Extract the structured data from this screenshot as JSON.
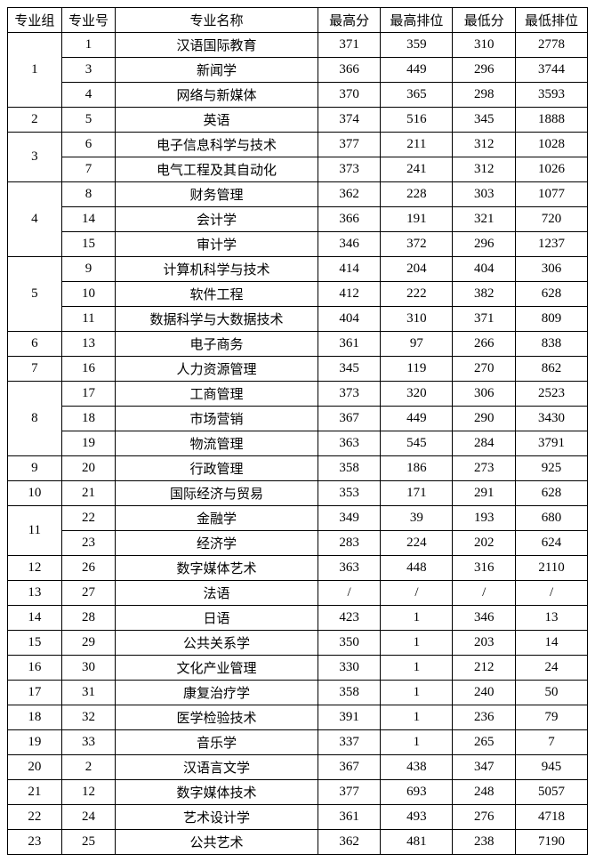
{
  "table": {
    "columns": [
      "专业组",
      "专业号",
      "专业名称",
      "最高分",
      "最高排位",
      "最低分",
      "最低排位"
    ],
    "groups": [
      {
        "group": "1",
        "rows": [
          {
            "num": "1",
            "name": "汉语国际教育",
            "maxScore": "371",
            "maxRank": "359",
            "minScore": "310",
            "minRank": "2778"
          },
          {
            "num": "3",
            "name": "新闻学",
            "maxScore": "366",
            "maxRank": "449",
            "minScore": "296",
            "minRank": "3744"
          },
          {
            "num": "4",
            "name": "网络与新媒体",
            "maxScore": "370",
            "maxRank": "365",
            "minScore": "298",
            "minRank": "3593"
          }
        ]
      },
      {
        "group": "2",
        "rows": [
          {
            "num": "5",
            "name": "英语",
            "maxScore": "374",
            "maxRank": "516",
            "minScore": "345",
            "minRank": "1888"
          }
        ]
      },
      {
        "group": "3",
        "rows": [
          {
            "num": "6",
            "name": "电子信息科学与技术",
            "maxScore": "377",
            "maxRank": "211",
            "minScore": "312",
            "minRank": "1028"
          },
          {
            "num": "7",
            "name": "电气工程及其自动化",
            "maxScore": "373",
            "maxRank": "241",
            "minScore": "312",
            "minRank": "1026"
          }
        ]
      },
      {
        "group": "4",
        "rows": [
          {
            "num": "8",
            "name": "财务管理",
            "maxScore": "362",
            "maxRank": "228",
            "minScore": "303",
            "minRank": "1077"
          },
          {
            "num": "14",
            "name": "会计学",
            "maxScore": "366",
            "maxRank": "191",
            "minScore": "321",
            "minRank": "720"
          },
          {
            "num": "15",
            "name": "审计学",
            "maxScore": "346",
            "maxRank": "372",
            "minScore": "296",
            "minRank": "1237"
          }
        ]
      },
      {
        "group": "5",
        "rows": [
          {
            "num": "9",
            "name": "计算机科学与技术",
            "maxScore": "414",
            "maxRank": "204",
            "minScore": "404",
            "minRank": "306"
          },
          {
            "num": "10",
            "name": "软件工程",
            "maxScore": "412",
            "maxRank": "222",
            "minScore": "382",
            "minRank": "628"
          },
          {
            "num": "11",
            "name": "数据科学与大数据技术",
            "maxScore": "404",
            "maxRank": "310",
            "minScore": "371",
            "minRank": "809"
          }
        ]
      },
      {
        "group": "6",
        "rows": [
          {
            "num": "13",
            "name": "电子商务",
            "maxScore": "361",
            "maxRank": "97",
            "minScore": "266",
            "minRank": "838"
          }
        ]
      },
      {
        "group": "7",
        "rows": [
          {
            "num": "16",
            "name": "人力资源管理",
            "maxScore": "345",
            "maxRank": "119",
            "minScore": "270",
            "minRank": "862"
          }
        ]
      },
      {
        "group": "8",
        "rows": [
          {
            "num": "17",
            "name": "工商管理",
            "maxScore": "373",
            "maxRank": "320",
            "minScore": "306",
            "minRank": "2523"
          },
          {
            "num": "18",
            "name": "市场营销",
            "maxScore": "367",
            "maxRank": "449",
            "minScore": "290",
            "minRank": "3430"
          },
          {
            "num": "19",
            "name": "物流管理",
            "maxScore": "363",
            "maxRank": "545",
            "minScore": "284",
            "minRank": "3791"
          }
        ]
      },
      {
        "group": "9",
        "rows": [
          {
            "num": "20",
            "name": "行政管理",
            "maxScore": "358",
            "maxRank": "186",
            "minScore": "273",
            "minRank": "925"
          }
        ]
      },
      {
        "group": "10",
        "rows": [
          {
            "num": "21",
            "name": "国际经济与贸易",
            "maxScore": "353",
            "maxRank": "171",
            "minScore": "291",
            "minRank": "628"
          }
        ]
      },
      {
        "group": "11",
        "rows": [
          {
            "num": "22",
            "name": "金融学",
            "maxScore": "349",
            "maxRank": "39",
            "minScore": "193",
            "minRank": "680"
          },
          {
            "num": "23",
            "name": "经济学",
            "maxScore": "283",
            "maxRank": "224",
            "minScore": "202",
            "minRank": "624"
          }
        ]
      },
      {
        "group": "12",
        "rows": [
          {
            "num": "26",
            "name": "数字媒体艺术",
            "maxScore": "363",
            "maxRank": "448",
            "minScore": "316",
            "minRank": "2110"
          }
        ]
      },
      {
        "group": "13",
        "rows": [
          {
            "num": "27",
            "name": "法语",
            "maxScore": "/",
            "maxRank": "/",
            "minScore": "/",
            "minRank": "/"
          }
        ]
      },
      {
        "group": "14",
        "rows": [
          {
            "num": "28",
            "name": "日语",
            "maxScore": "423",
            "maxRank": "1",
            "minScore": "346",
            "minRank": "13"
          }
        ]
      },
      {
        "group": "15",
        "rows": [
          {
            "num": "29",
            "name": "公共关系学",
            "maxScore": "350",
            "maxRank": "1",
            "minScore": "203",
            "minRank": "14"
          }
        ]
      },
      {
        "group": "16",
        "rows": [
          {
            "num": "30",
            "name": "文化产业管理",
            "maxScore": "330",
            "maxRank": "1",
            "minScore": "212",
            "minRank": "24"
          }
        ]
      },
      {
        "group": "17",
        "rows": [
          {
            "num": "31",
            "name": "康复治疗学",
            "maxScore": "358",
            "maxRank": "1",
            "minScore": "240",
            "minRank": "50"
          }
        ]
      },
      {
        "group": "18",
        "rows": [
          {
            "num": "32",
            "name": "医学检验技术",
            "maxScore": "391",
            "maxRank": "1",
            "minScore": "236",
            "minRank": "79"
          }
        ]
      },
      {
        "group": "19",
        "rows": [
          {
            "num": "33",
            "name": "音乐学",
            "maxScore": "337",
            "maxRank": "1",
            "minScore": "265",
            "minRank": "7"
          }
        ]
      },
      {
        "group": "20",
        "rows": [
          {
            "num": "2",
            "name": "汉语言文学",
            "maxScore": "367",
            "maxRank": "438",
            "minScore": "347",
            "minRank": "945"
          }
        ]
      },
      {
        "group": "21",
        "rows": [
          {
            "num": "12",
            "name": "数字媒体技术",
            "maxScore": "377",
            "maxRank": "693",
            "minScore": "248",
            "minRank": "5057"
          }
        ]
      },
      {
        "group": "22",
        "rows": [
          {
            "num": "24",
            "name": "艺术设计学",
            "maxScore": "361",
            "maxRank": "493",
            "minScore": "276",
            "minRank": "4718"
          }
        ]
      },
      {
        "group": "23",
        "rows": [
          {
            "num": "25",
            "name": "公共艺术",
            "maxScore": "362",
            "maxRank": "481",
            "minScore": "238",
            "minRank": "7190"
          }
        ]
      }
    ]
  }
}
